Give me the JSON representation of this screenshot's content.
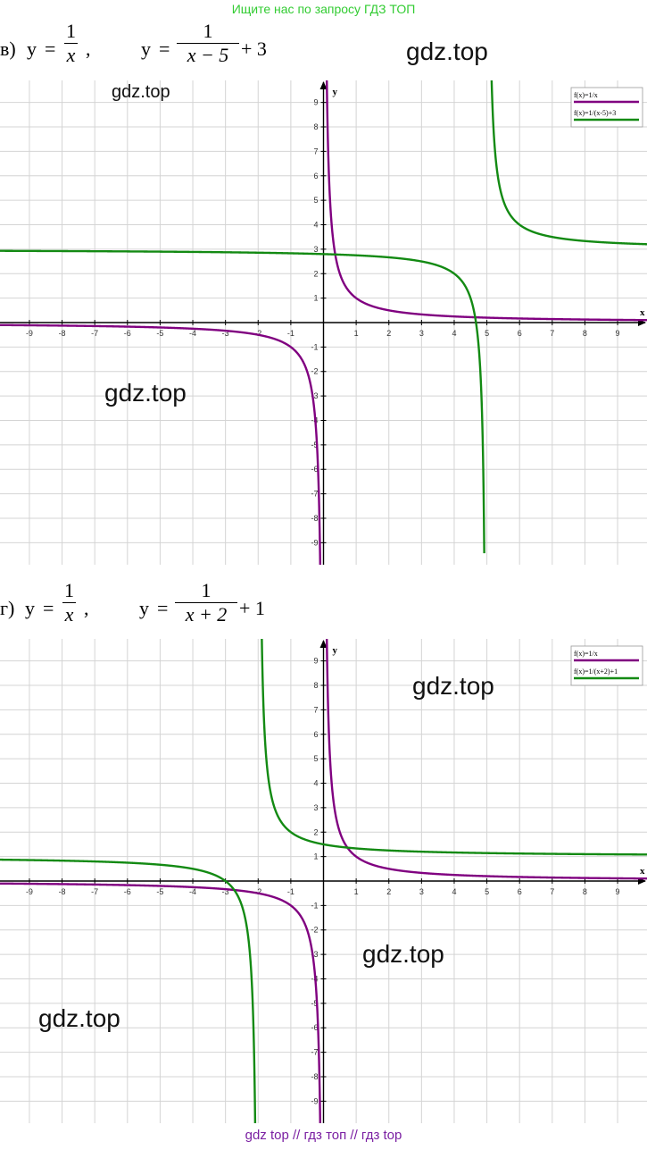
{
  "banner": "Ищите нас по запросу ГДЗ ТОП",
  "footer": "gdz top  //  гдз топ  //  гдз top",
  "watermarks": [
    "gdz.top",
    "gdz.top",
    "gdz.top",
    "gdz.top",
    "gdz.top",
    "gdz.top"
  ],
  "colors": {
    "purple": "#800080",
    "green": "#138a13",
    "grid": "#d4d4d4"
  },
  "problems": [
    {
      "label": "в)",
      "eq1": {
        "lhs": "y",
        "num": "1",
        "den": "x",
        "tail": ","
      },
      "eq2": {
        "lhs": "y",
        "num": "1",
        "den": "x − 5",
        "tail": "+ 3"
      }
    },
    {
      "label": "г)",
      "eq1": {
        "lhs": "y",
        "num": "1",
        "den": "x",
        "tail": ","
      },
      "eq2": {
        "lhs": "y",
        "num": "1",
        "den": "x + 2",
        "tail": "+ 1"
      }
    }
  ],
  "chart_data": [
    {
      "type": "line",
      "xlabel": "x",
      "ylabel": "y",
      "xlim": [
        -9.9,
        9.9
      ],
      "ylim": [
        -9.9,
        9.9
      ],
      "x_ticks": [
        -9,
        -8,
        -7,
        -6,
        -5,
        -4,
        -3,
        -2,
        -1,
        1,
        2,
        3,
        4,
        5,
        6,
        7,
        8,
        9
      ],
      "y_ticks": [
        9,
        8,
        7,
        6,
        5,
        4,
        3,
        2,
        1,
        -1,
        -2,
        -3,
        -4,
        -5,
        -6,
        -7,
        -8,
        -9
      ],
      "grid": true,
      "legend_position": "top-right",
      "series": [
        {
          "name": "f(x)=1/x",
          "color": "#800080",
          "asymptote_x": 0,
          "shift": 0,
          "offset": 0
        },
        {
          "name": "f(x)=1/(x-5)+3",
          "color": "#138a13",
          "asymptote_x": 5,
          "shift": 5,
          "offset": 3
        }
      ]
    },
    {
      "type": "line",
      "xlabel": "x",
      "ylabel": "y",
      "xlim": [
        -9.9,
        9.9
      ],
      "ylim": [
        -9.9,
        9.9
      ],
      "x_ticks": [
        -9,
        -8,
        -7,
        -6,
        -5,
        -4,
        -3,
        -2,
        -1,
        1,
        2,
        3,
        4,
        5,
        6,
        7,
        8,
        9
      ],
      "y_ticks": [
        9,
        8,
        7,
        6,
        5,
        4,
        3,
        2,
        1,
        -1,
        -2,
        -3,
        -4,
        -5,
        -6,
        -7,
        -8,
        -9
      ],
      "grid": true,
      "legend_position": "top-right",
      "series": [
        {
          "name": "f(x)=1/x",
          "color": "#800080",
          "asymptote_x": 0,
          "shift": 0,
          "offset": 0
        },
        {
          "name": "f(x)=1/(x+2)+1",
          "color": "#138a13",
          "asymptote_x": -2,
          "shift": -2,
          "offset": 1
        }
      ]
    }
  ]
}
